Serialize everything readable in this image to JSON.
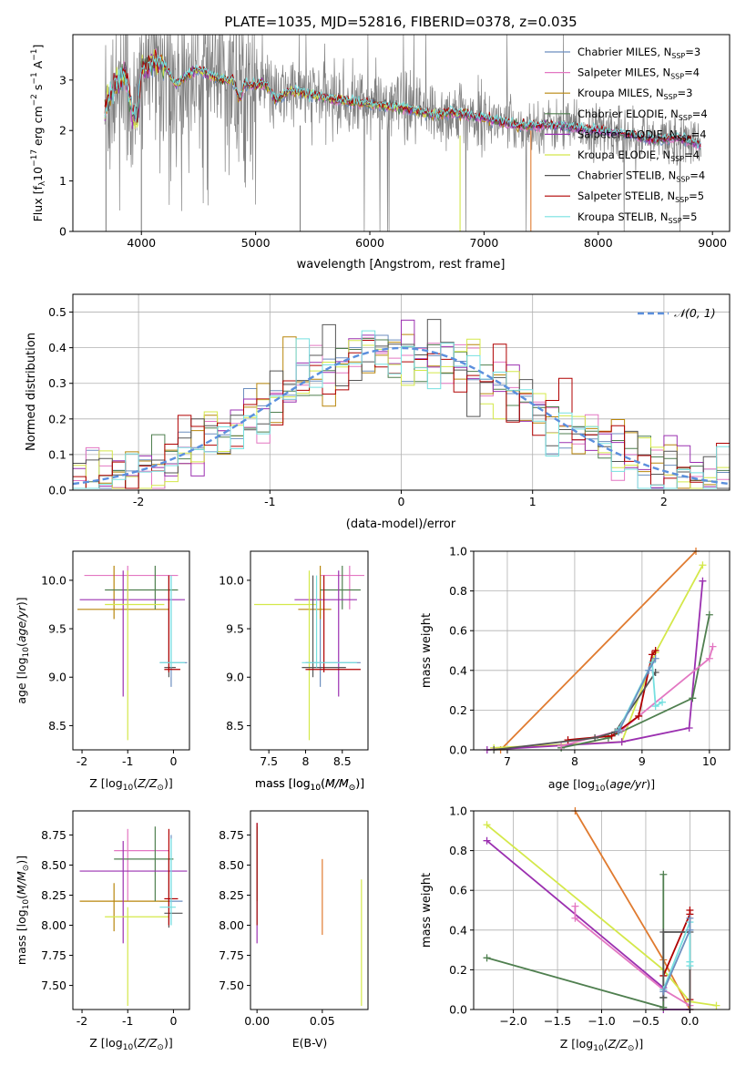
{
  "title": "PLATE=1035, MJD=52816, FIBERID=0378, z=0.035",
  "colors": {
    "Chabrier MILES": "#6c8ebf",
    "Salpeter MILES": "#e377c2",
    "Kroupa MILES": "#b8860b",
    "Chabrier ELODIE": "#4f7f4f",
    "Salpeter ELODIE": "#9b30b0",
    "Kroupa ELODIE": "#d4e84a",
    "Chabrier STELIB": "#555555",
    "Salpeter STELIB": "#b00000",
    "Kroupa STELIB": "#76e0e0",
    "data": "#808080",
    "orange": "#e07b30",
    "gaussian": "#5b8fdd"
  },
  "chart_data": [
    {
      "id": "spectrum",
      "type": "line",
      "title": "PLATE=1035, MJD=52816, FIBERID=0378, z=0.035",
      "xlabel": "wavelength [Angstrom, rest frame]",
      "ylabel": "Flux [f_λ 10^-17 erg cm^-2 s^-1 A^-1]",
      "xlim": [
        3400,
        9150
      ],
      "ylim": [
        0,
        3.9
      ],
      "xticks": [
        4000,
        5000,
        6000,
        7000,
        8000,
        9000
      ],
      "yticks": [
        0,
        1,
        2,
        3
      ],
      "grid": false,
      "legend_placement": "top-right",
      "legend": [
        {
          "label": "Chabrier MILES, N",
          "sub": "SSP",
          "val": "=3"
        },
        {
          "label": "Salpeter MILES, N",
          "sub": "SSP",
          "val": "=4"
        },
        {
          "label": "Kroupa MILES, N",
          "sub": "SSP",
          "val": "=3"
        },
        {
          "label": "Chabrier ELODIE, N",
          "sub": "SSP",
          "val": "=4"
        },
        {
          "label": "Salpeter ELODIE, N",
          "sub": "SSP",
          "val": "=4"
        },
        {
          "label": "Kroupa ELODIE, N",
          "sub": "SSP",
          "val": "=4"
        },
        {
          "label": "Chabrier STELIB, N",
          "sub": "SSP",
          "val": "=4"
        },
        {
          "label": "Salpeter STELIB, N",
          "sub": "SSP",
          "val": "=5"
        },
        {
          "label": "Kroupa STELIB, N",
          "sub": "SSP",
          "val": "=5"
        }
      ],
      "model_continuum": [
        [
          3680,
          2.4
        ],
        [
          3750,
          2.8
        ],
        [
          3800,
          3.0
        ],
        [
          3860,
          3.1
        ],
        [
          3933,
          2.2
        ],
        [
          3968,
          2.3
        ],
        [
          4000,
          3.2
        ],
        [
          4100,
          3.4
        ],
        [
          4200,
          3.3
        ],
        [
          4300,
          2.9
        ],
        [
          4400,
          3.1
        ],
        [
          4500,
          3.2
        ],
        [
          4600,
          3.1
        ],
        [
          4700,
          3.0
        ],
        [
          4800,
          3.0
        ],
        [
          4861,
          2.6
        ],
        [
          4900,
          2.9
        ],
        [
          5000,
          2.9
        ],
        [
          5100,
          2.9
        ],
        [
          5175,
          2.6
        ],
        [
          5300,
          2.8
        ],
        [
          5500,
          2.7
        ],
        [
          5700,
          2.6
        ],
        [
          5900,
          2.55
        ],
        [
          6100,
          2.5
        ],
        [
          6300,
          2.45
        ],
        [
          6563,
          2.3
        ],
        [
          6700,
          2.35
        ],
        [
          7000,
          2.25
        ],
        [
          7300,
          2.1
        ],
        [
          7600,
          2.1
        ],
        [
          8000,
          2.0
        ],
        [
          8200,
          1.95
        ],
        [
          8500,
          1.8
        ],
        [
          8700,
          1.85
        ],
        [
          8900,
          1.7
        ]
      ]
    },
    {
      "id": "residuals",
      "type": "histogram",
      "xlabel": "(data-model)/error",
      "ylabel": "Normed distribution",
      "xlim": [
        -2.5,
        2.5
      ],
      "ylim": [
        0,
        0.55
      ],
      "xticks": [
        -2,
        -1,
        0,
        1,
        2
      ],
      "yticks": [
        0.0,
        0.1,
        0.2,
        0.3,
        0.4,
        0.5
      ],
      "grid": true,
      "legend_placement": "top-right",
      "legend": [
        {
          "label": "𝒩(0, 1)"
        }
      ],
      "bins": {
        "start": -2.5,
        "width": 0.1,
        "count": 50
      }
    },
    {
      "id": "age-vs-Z",
      "type": "scatter",
      "xlabel": "Z [log10(Z/Z⊙)]",
      "ylabel": "age [log10(age/yr)]",
      "xlim": [
        -2.2,
        0.35
      ],
      "ylim": [
        8.25,
        10.3
      ],
      "xticks": [
        -2,
        -1,
        0
      ],
      "yticks": [
        8.5,
        9.0,
        9.5,
        10.0
      ],
      "points": [
        {
          "m": "Chabrier MILES",
          "x": -0.05,
          "y": 9.15,
          "ex": [
            -0.3,
            0.3
          ],
          "ey": [
            8.9,
            10.05
          ]
        },
        {
          "m": "Salpeter MILES",
          "x": -1.0,
          "y": 10.05,
          "ex": [
            -1.95,
            0.1
          ],
          "ey": [
            9.7,
            10.15
          ]
        },
        {
          "m": "Kroupa MILES",
          "x": -1.3,
          "y": 9.7,
          "ex": [
            -2.1,
            -0.1
          ],
          "ey": [
            9.6,
            10.15
          ]
        },
        {
          "m": "Chabrier ELODIE",
          "x": -0.4,
          "y": 9.9,
          "ex": [
            -1.5,
            0.1
          ],
          "ey": [
            9.7,
            10.15
          ]
        },
        {
          "m": "Salpeter ELODIE",
          "x": -1.1,
          "y": 9.8,
          "ex": [
            -2.05,
            0.25
          ],
          "ey": [
            8.8,
            10.1
          ]
        },
        {
          "m": "Kroupa ELODIE",
          "x": -1.0,
          "y": 9.75,
          "ex": [
            -1.5,
            -0.2
          ],
          "ey": [
            8.35,
            10.1
          ]
        },
        {
          "m": "Chabrier STELIB",
          "x": -0.1,
          "y": 9.1,
          "ex": [
            -0.2,
            0.05
          ],
          "ey": [
            9.0,
            10.05
          ]
        },
        {
          "m": "Salpeter STELIB",
          "x": -0.1,
          "y": 9.08,
          "ex": [
            -0.2,
            0.15
          ],
          "ey": [
            9.05,
            10.05
          ]
        },
        {
          "m": "Kroupa STELIB",
          "x": -0.05,
          "y": 9.15,
          "ex": [
            -0.3,
            0.25
          ],
          "ey": [
            9.1,
            10.05
          ]
        }
      ]
    },
    {
      "id": "age-vs-mass",
      "type": "scatter",
      "xlabel": "mass [log10(M/M⊙)]",
      "xlim": [
        7.25,
        8.85
      ],
      "ylim": [
        8.25,
        10.3
      ],
      "xticks": [
        7.5,
        8.0,
        8.5
      ],
      "yticks": [
        8.5,
        9.0,
        9.5,
        10.0
      ],
      "points": [
        {
          "m": "Chabrier MILES",
          "x": 8.2,
          "y": 9.15,
          "ex": [
            8.0,
            8.75
          ],
          "ey": [
            8.9,
            10.05
          ]
        },
        {
          "m": "Salpeter MILES",
          "x": 8.6,
          "y": 10.05,
          "ex": [
            8.2,
            8.8
          ],
          "ey": [
            9.7,
            10.15
          ]
        },
        {
          "m": "Kroupa MILES",
          "x": 8.2,
          "y": 9.7,
          "ex": [
            7.9,
            8.35
          ],
          "ey": [
            9.6,
            10.15
          ]
        },
        {
          "m": "Chabrier ELODIE",
          "x": 8.5,
          "y": 9.9,
          "ex": [
            8.2,
            8.75
          ],
          "ey": [
            9.7,
            10.15
          ]
        },
        {
          "m": "Salpeter ELODIE",
          "x": 8.45,
          "y": 9.8,
          "ex": [
            7.85,
            8.7
          ],
          "ey": [
            8.8,
            10.1
          ]
        },
        {
          "m": "Kroupa ELODIE",
          "x": 8.05,
          "y": 9.75,
          "ex": [
            7.3,
            8.15
          ],
          "ey": [
            8.35,
            10.1
          ]
        },
        {
          "m": "Chabrier STELIB",
          "x": 8.1,
          "y": 9.1,
          "ex": [
            7.95,
            8.55
          ],
          "ey": [
            9.0,
            10.05
          ]
        },
        {
          "m": "Salpeter STELIB",
          "x": 8.25,
          "y": 9.08,
          "ex": [
            8.0,
            8.75
          ],
          "ey": [
            9.05,
            10.05
          ]
        },
        {
          "m": "Kroupa STELIB",
          "x": 8.15,
          "y": 9.15,
          "ex": [
            7.95,
            8.7
          ],
          "ey": [
            9.1,
            10.05
          ]
        }
      ]
    },
    {
      "id": "weight-vs-age",
      "type": "line",
      "xlabel": "age [log10(age/yr)]",
      "ylabel": "mass weight",
      "xlim": [
        6.5,
        10.3
      ],
      "ylim": [
        0,
        1.0
      ],
      "xticks": [
        7,
        8,
        9,
        10
      ],
      "yticks": [
        0.0,
        0.2,
        0.4,
        0.6,
        0.8,
        1.0
      ],
      "grid": true,
      "series": [
        {
          "m": "orange",
          "x": [
            6.9,
            9.8
          ],
          "y": [
            0.0,
            1.0
          ]
        },
        {
          "m": "Kroupa ELODIE",
          "x": [
            6.8,
            8.7,
            9.2,
            9.9
          ],
          "y": [
            0.01,
            0.04,
            0.49,
            0.93
          ]
        },
        {
          "m": "Salpeter ELODIE",
          "x": [
            6.7,
            8.7,
            9.7,
            9.9
          ],
          "y": [
            0.0,
            0.04,
            0.11,
            0.85
          ]
        },
        {
          "m": "Chabrier ELODIE",
          "x": [
            7.8,
            8.5,
            9.75,
            10.0
          ],
          "y": [
            0.01,
            0.06,
            0.26,
            0.68
          ]
        },
        {
          "m": "Salpeter MILES",
          "x": [
            7.8,
            8.7,
            10.0,
            10.05
          ],
          "y": [
            0.02,
            0.1,
            0.46,
            0.52
          ]
        },
        {
          "m": "Salpeter STELIB",
          "x": [
            7.9,
            8.55,
            8.95,
            9.15,
            9.2
          ],
          "y": [
            0.05,
            0.07,
            0.17,
            0.48,
            0.5
          ]
        },
        {
          "m": "Chabrier STELIB",
          "x": [
            6.8,
            8.3,
            8.6,
            9.2
          ],
          "y": [
            0.0,
            0.06,
            0.09,
            0.39
          ]
        },
        {
          "m": "Kroupa STELIB",
          "x": [
            8.65,
            9.15,
            9.2,
            9.3
          ],
          "y": [
            0.1,
            0.44,
            0.22,
            0.24
          ]
        },
        {
          "m": "Chabrier MILES",
          "x": [
            8.65,
            9.1,
            9.2
          ],
          "y": [
            0.09,
            0.4,
            0.46
          ]
        }
      ]
    },
    {
      "id": "mass-vs-Z",
      "type": "scatter",
      "xlabel": "Z [log10(Z/Z⊙)]",
      "ylabel": "mass [log10(M/M⊙)]",
      "xlim": [
        -2.2,
        0.35
      ],
      "ylim": [
        7.3,
        8.95
      ],
      "xticks": [
        -2,
        -1,
        0
      ],
      "yticks": [
        7.5,
        7.75,
        8.0,
        8.25,
        8.5,
        8.75
      ],
      "points": [
        {
          "m": "Chabrier MILES",
          "x": -0.05,
          "y": 8.2,
          "ex": [
            -0.3,
            0.2
          ],
          "ey": [
            8.0,
            8.75
          ]
        },
        {
          "m": "Salpeter MILES",
          "x": -1.0,
          "y": 8.62,
          "ex": [
            -1.3,
            -0.1
          ],
          "ey": [
            8.2,
            8.8
          ]
        },
        {
          "m": "Kroupa MILES",
          "x": -1.3,
          "y": 8.2,
          "ex": [
            -2.05,
            -0.1
          ],
          "ey": [
            7.95,
            8.35
          ]
        },
        {
          "m": "Chabrier ELODIE",
          "x": -0.4,
          "y": 8.55,
          "ex": [
            -1.3,
            0.0
          ],
          "ey": [
            8.2,
            8.82
          ]
        },
        {
          "m": "Salpeter ELODIE",
          "x": -1.1,
          "y": 8.45,
          "ex": [
            -2.05,
            0.3
          ],
          "ey": [
            7.85,
            8.7
          ]
        },
        {
          "m": "Kroupa ELODIE",
          "x": -1.0,
          "y": 8.07,
          "ex": [
            -1.5,
            -0.1
          ],
          "ey": [
            7.33,
            8.15
          ]
        },
        {
          "m": "Chabrier STELIB",
          "x": -0.1,
          "y": 8.1,
          "ex": [
            -0.2,
            0.2
          ],
          "ey": [
            7.98,
            8.55
          ]
        },
        {
          "m": "Salpeter STELIB",
          "x": -0.1,
          "y": 8.22,
          "ex": [
            -0.2,
            0.1
          ],
          "ey": [
            8.0,
            8.8
          ]
        },
        {
          "m": "Kroupa STELIB",
          "x": -0.05,
          "y": 8.15,
          "ex": [
            -0.3,
            0.05
          ],
          "ey": [
            8.0,
            8.72
          ]
        }
      ]
    },
    {
      "id": "mass-vs-ebv",
      "type": "scatter",
      "xlabel": "E(B-V)",
      "xlim": [
        -0.005,
        0.085
      ],
      "ylim": [
        7.3,
        8.95
      ],
      "xticks": [
        0.0,
        0.05
      ],
      "tick_labels": [
        "0.00",
        "0.05"
      ],
      "yticks": [
        7.5,
        7.75,
        8.0,
        8.25,
        8.5,
        8.75
      ],
      "points": [
        {
          "m": "Salpeter ELODIE",
          "x": 0.0,
          "y": 8.3,
          "ey": [
            7.85,
            8.85
          ]
        },
        {
          "m": "Kroupa STELIB",
          "x": 0.0,
          "y": 8.5,
          "ey": [
            8.0,
            8.8
          ]
        },
        {
          "m": "Chabrier ELODIE",
          "x": 0.0,
          "y": 8.5,
          "ey": [
            8.2,
            8.82
          ]
        },
        {
          "m": "Salpeter STELIB",
          "x": 0.0,
          "y": 8.5,
          "ey": [
            8.0,
            8.85
          ]
        },
        {
          "m": "orange",
          "x": 0.05,
          "y": 8.2,
          "ey": [
            7.92,
            8.55
          ]
        },
        {
          "m": "Kroupa ELODIE",
          "x": 0.08,
          "y": 7.8,
          "ey": [
            7.33,
            8.38
          ]
        }
      ]
    },
    {
      "id": "weight-vs-Z",
      "type": "line",
      "xlabel": "Z [log10(Z/Z⊙)]",
      "ylabel": "mass weight",
      "xlim": [
        -2.45,
        0.45
      ],
      "ylim": [
        0,
        1.0
      ],
      "xticks": [
        -2.0,
        -1.5,
        -1.0,
        -0.5,
        0.0
      ],
      "tick_labels": [
        "−2.0",
        "−1.5",
        "−1.0",
        "−0.5",
        "0.0"
      ],
      "yticks": [
        0.0,
        0.2,
        0.4,
        0.6,
        0.8,
        1.0
      ],
      "grid": true,
      "series": [
        {
          "m": "orange",
          "x": [
            -1.3,
            -0.3,
            0.0
          ],
          "y": [
            1.0,
            0.25,
            0.0
          ]
        },
        {
          "m": "Kroupa ELODIE",
          "x": [
            -2.3,
            -0.3,
            0.0,
            0.3
          ],
          "y": [
            0.93,
            0.2,
            0.04,
            0.02
          ]
        },
        {
          "m": "Salpeter ELODIE",
          "x": [
            -2.3,
            -0.3,
            -0.3,
            0.0
          ],
          "y": [
            0.85,
            0.11,
            0.0,
            0.0
          ]
        },
        {
          "m": "Chabrier ELODIE",
          "x": [
            -2.3,
            -0.3,
            -0.3,
            -0.3
          ],
          "y": [
            0.26,
            0.01,
            0.68,
            0.06
          ]
        },
        {
          "m": "Salpeter MILES",
          "x": [
            -1.3,
            -1.3,
            -0.3,
            0.0
          ],
          "y": [
            0.52,
            0.46,
            0.1,
            0.02
          ]
        },
        {
          "m": "Salpeter STELIB",
          "x": [
            -0.3,
            0.0,
            0.0,
            0.0
          ],
          "y": [
            0.17,
            0.48,
            0.5,
            0.05
          ]
        },
        {
          "m": "Chabrier STELIB",
          "x": [
            -0.3,
            -0.3,
            0.0,
            0.0
          ],
          "y": [
            0.06,
            0.39,
            0.39,
            0.0
          ]
        },
        {
          "m": "Kroupa STELIB",
          "x": [
            -0.3,
            0.0,
            0.0,
            0.0
          ],
          "y": [
            0.1,
            0.44,
            0.22,
            0.24
          ]
        },
        {
          "m": "Chabrier MILES",
          "x": [
            -0.3,
            0.0,
            0.0
          ],
          "y": [
            0.09,
            0.4,
            0.46
          ]
        }
      ]
    }
  ]
}
